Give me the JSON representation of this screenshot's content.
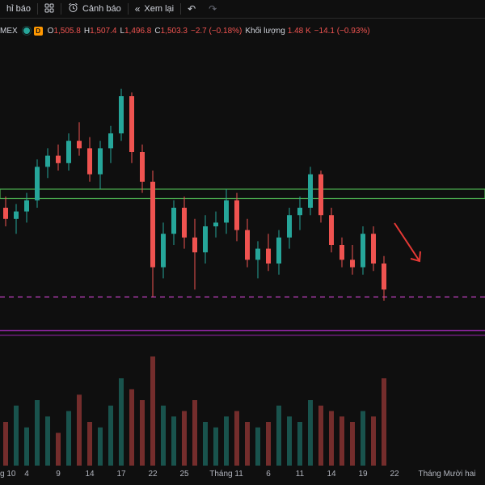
{
  "toolbar": {
    "indicators_label": "hỉ báo",
    "layout_icon": "grid-icon",
    "alert_label": "Cảnh báo",
    "alert_icon": "alarm-clock-icon",
    "replay_label": "Xem lại",
    "replay_icon": "rewind-icon",
    "undo_icon": "undo-icon",
    "redo_icon": "redo-icon"
  },
  "legend": {
    "symbol": "MEX",
    "status_badge": "D",
    "status_color": "#ff9800",
    "open_label": "O",
    "open_value": "1,505.8",
    "high_label": "H",
    "high_value": "1,507.4",
    "low_label": "L",
    "low_value": "1,496.8",
    "close_label": "C",
    "close_value": "1,503.3",
    "change": "−2.7 (−0.18%)",
    "volume_label": "Khối lượng",
    "volume_value": "1.48 K",
    "volume_change": "−14.1 (−0.93%)"
  },
  "colors": {
    "up": "#26a69a",
    "down": "#ef5350",
    "support_dashed": "#c040c0",
    "target_line": "#9c27b0",
    "zone": "#4caf50",
    "arrow": "#e53935"
  },
  "x_axis": {
    "ticks": [
      {
        "label": "g 10",
        "slot": 0
      },
      {
        "label": "4",
        "slot": 2
      },
      {
        "label": "9",
        "slot": 5
      },
      {
        "label": "14",
        "slot": 8
      },
      {
        "label": "17",
        "slot": 11
      },
      {
        "label": "22",
        "slot": 14
      },
      {
        "label": "25",
        "slot": 17
      },
      {
        "label": "Tháng 11",
        "slot": 21
      },
      {
        "label": "6",
        "slot": 25
      },
      {
        "label": "11",
        "slot": 28
      },
      {
        "label": "14",
        "slot": 31
      },
      {
        "label": "19",
        "slot": 34
      },
      {
        "label": "22",
        "slot": 37
      },
      {
        "label": "Tháng Mười hai",
        "slot": 42
      }
    ]
  },
  "chart_data": {
    "type": "candlestick",
    "price_levels": {
      "resistance_zone": [
        1512.5,
        1515.0
      ],
      "support_dashed": 1486.0,
      "target": 1477.0
    },
    "candles": [
      {
        "o": 1510,
        "h": 1513,
        "l": 1505,
        "c": 1507,
        "v": 40
      },
      {
        "o": 1507,
        "h": 1511,
        "l": 1503,
        "c": 1509,
        "v": 55
      },
      {
        "o": 1509,
        "h": 1514,
        "l": 1506,
        "c": 1512,
        "v": 35
      },
      {
        "o": 1512,
        "h": 1523,
        "l": 1510,
        "c": 1521,
        "v": 60
      },
      {
        "o": 1521,
        "h": 1526,
        "l": 1518,
        "c": 1524,
        "v": 45
      },
      {
        "o": 1524,
        "h": 1527,
        "l": 1520,
        "c": 1522,
        "v": 30
      },
      {
        "o": 1522,
        "h": 1530,
        "l": 1520,
        "c": 1528,
        "v": 50
      },
      {
        "o": 1528,
        "h": 1533,
        "l": 1524,
        "c": 1526,
        "v": 65
      },
      {
        "o": 1526,
        "h": 1529,
        "l": 1517,
        "c": 1519,
        "v": 40
      },
      {
        "o": 1519,
        "h": 1528,
        "l": 1515,
        "c": 1526,
        "v": 35
      },
      {
        "o": 1526,
        "h": 1532,
        "l": 1522,
        "c": 1530,
        "v": 55
      },
      {
        "o": 1530,
        "h": 1542,
        "l": 1528,
        "c": 1540,
        "v": 80
      },
      {
        "o": 1540,
        "h": 1541,
        "l": 1522,
        "c": 1525,
        "v": 70
      },
      {
        "o": 1525,
        "h": 1527,
        "l": 1514,
        "c": 1517,
        "v": 60
      },
      {
        "o": 1517,
        "h": 1520,
        "l": 1486,
        "c": 1494,
        "v": 100
      },
      {
        "o": 1494,
        "h": 1506,
        "l": 1491,
        "c": 1503,
        "v": 55
      },
      {
        "o": 1503,
        "h": 1512,
        "l": 1500,
        "c": 1510,
        "v": 45
      },
      {
        "o": 1510,
        "h": 1513,
        "l": 1499,
        "c": 1502,
        "v": 50
      },
      {
        "o": 1502,
        "h": 1507,
        "l": 1488,
        "c": 1498,
        "v": 60
      },
      {
        "o": 1498,
        "h": 1508,
        "l": 1495,
        "c": 1505,
        "v": 40
      },
      {
        "o": 1505,
        "h": 1509,
        "l": 1502,
        "c": 1506,
        "v": 35
      },
      {
        "o": 1506,
        "h": 1515,
        "l": 1503,
        "c": 1512,
        "v": 45
      },
      {
        "o": 1512,
        "h": 1514,
        "l": 1501,
        "c": 1504,
        "v": 50
      },
      {
        "o": 1504,
        "h": 1507,
        "l": 1494,
        "c": 1496,
        "v": 40
      },
      {
        "o": 1496,
        "h": 1501,
        "l": 1491,
        "c": 1499,
        "v": 35
      },
      {
        "o": 1499,
        "h": 1503,
        "l": 1493,
        "c": 1495,
        "v": 40
      },
      {
        "o": 1495,
        "h": 1504,
        "l": 1492,
        "c": 1502,
        "v": 55
      },
      {
        "o": 1502,
        "h": 1510,
        "l": 1499,
        "c": 1508,
        "v": 45
      },
      {
        "o": 1508,
        "h": 1513,
        "l": 1504,
        "c": 1510,
        "v": 40
      },
      {
        "o": 1510,
        "h": 1521,
        "l": 1508,
        "c": 1519,
        "v": 60
      },
      {
        "o": 1519,
        "h": 1520,
        "l": 1506,
        "c": 1508,
        "v": 55
      },
      {
        "o": 1508,
        "h": 1510,
        "l": 1498,
        "c": 1500,
        "v": 50
      },
      {
        "o": 1500,
        "h": 1502,
        "l": 1494,
        "c": 1496,
        "v": 45
      },
      {
        "o": 1496,
        "h": 1500,
        "l": 1492,
        "c": 1494,
        "v": 40
      },
      {
        "o": 1494,
        "h": 1505,
        "l": 1492,
        "c": 1503,
        "v": 50
      },
      {
        "o": 1503,
        "h": 1505,
        "l": 1493,
        "c": 1495,
        "v": 45
      },
      {
        "o": 1495,
        "h": 1497,
        "l": 1485,
        "c": 1488,
        "v": 80
      }
    ]
  }
}
